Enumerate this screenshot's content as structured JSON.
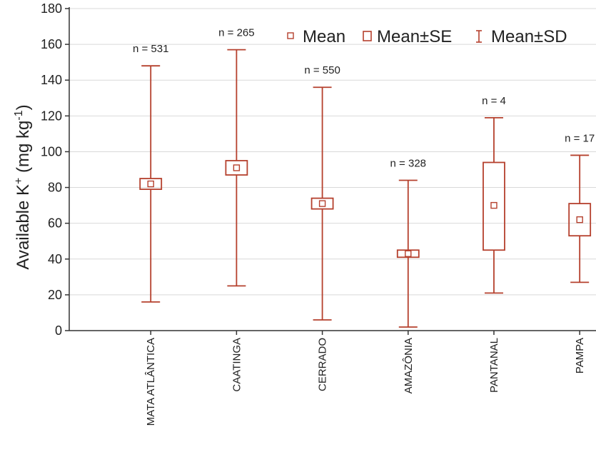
{
  "chart_data": {
    "type": "box",
    "ylabel": "Available K",
    "ylabel_sup": "+",
    "ylabel_unit": " (mg kg",
    "ylabel_unit_sup": "-1",
    "ylabel_close": ")",
    "ylim": [
      0,
      180
    ],
    "yticks": [
      0,
      20,
      40,
      60,
      80,
      100,
      120,
      140,
      160,
      180
    ],
    "grid": true,
    "legend_position": "top-right",
    "legend": {
      "mean": "Mean",
      "se": "Mean±SE",
      "sd": "Mean±SD"
    },
    "series_color": "#b5402d",
    "categories": [
      "MATA ATLÂNTICA",
      "CAATINGA",
      "CERRADO",
      "AMAZÔNIA",
      "PANTANAL",
      "PAMPA"
    ],
    "n_labels": [
      "n = 531",
      "n = 265",
      "n = 550",
      "n = 328",
      "n = 4",
      "n = 17"
    ],
    "mean": [
      82,
      91,
      71,
      43,
      70,
      62
    ],
    "se_low": [
      79,
      87,
      68,
      41,
      45,
      53
    ],
    "se_high": [
      85,
      95,
      74,
      45,
      94,
      71
    ],
    "sd_low": [
      16,
      25,
      6,
      2,
      21,
      27
    ],
    "sd_high": [
      148,
      157,
      136,
      84,
      119,
      98
    ]
  }
}
